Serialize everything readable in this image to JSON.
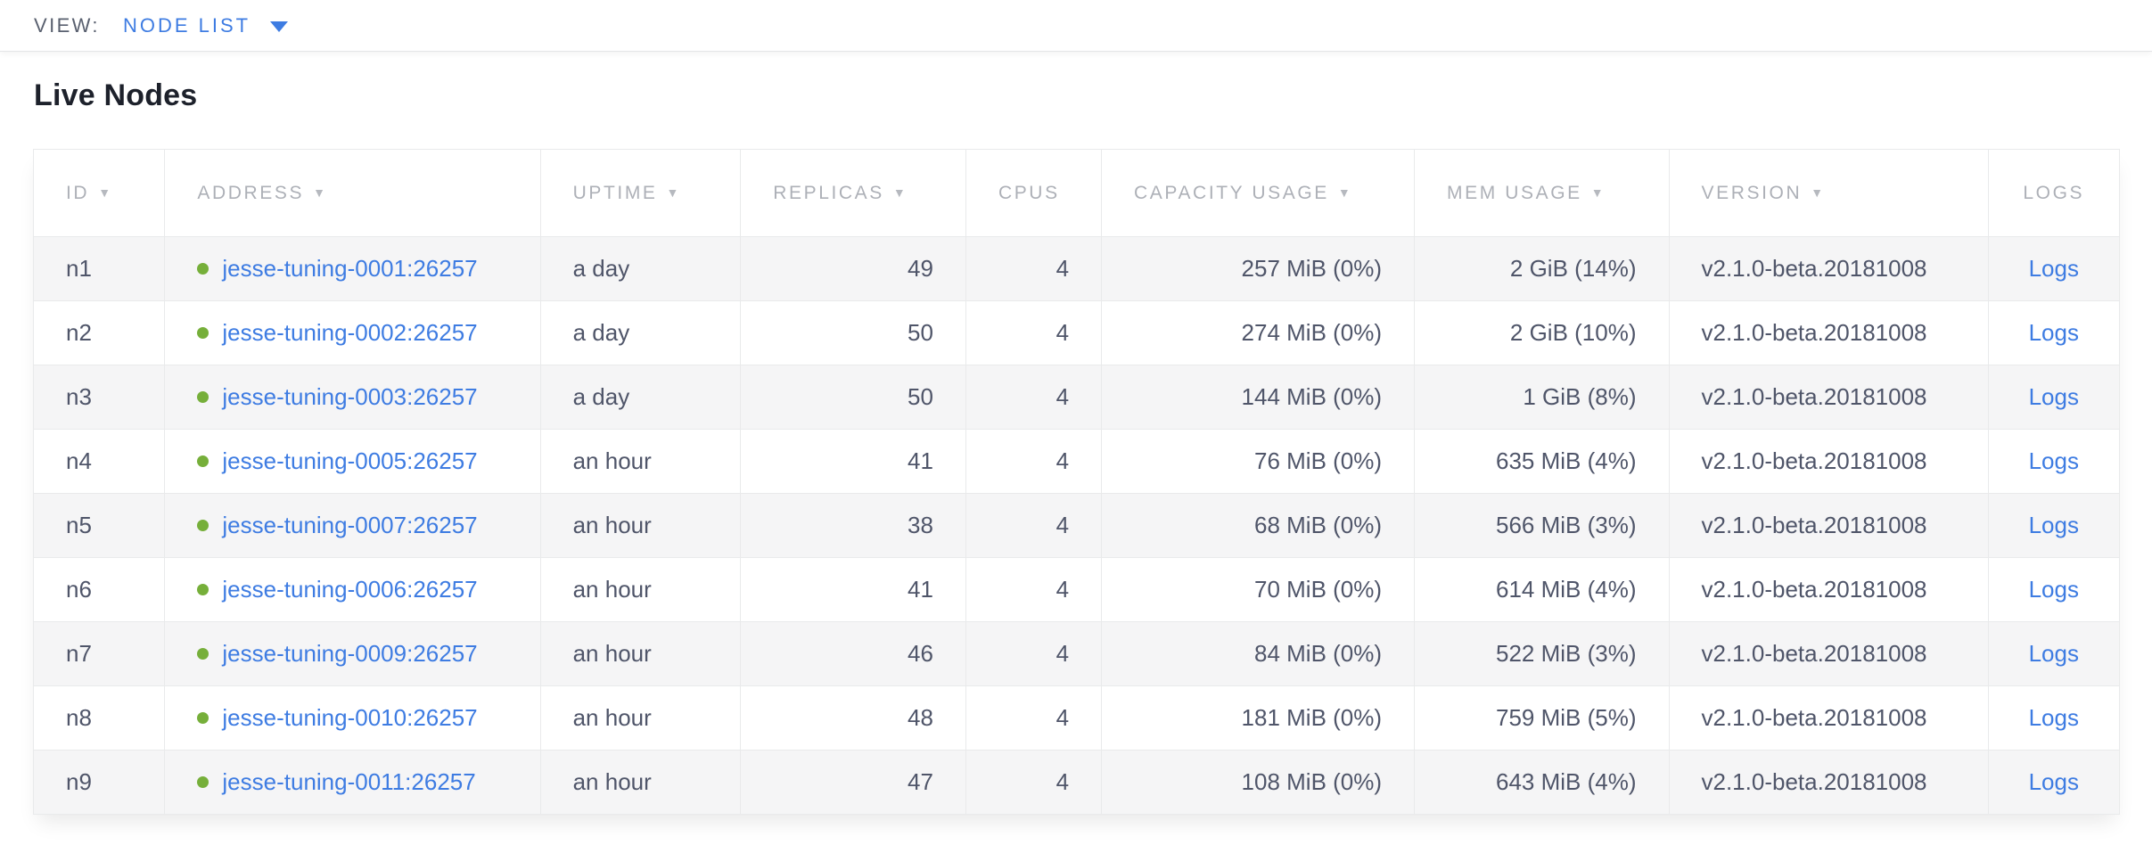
{
  "view_bar": {
    "label": "VIEW:",
    "selected": "NODE LIST"
  },
  "page": {
    "title": "Live Nodes"
  },
  "icons": {
    "sort_desc": "▼"
  },
  "colors": {
    "link": "#3e7ce2",
    "status_ok": "#76af3a",
    "header_text": "#adb0b7",
    "cell_text": "#4f5569",
    "zebra": "#f5f5f6",
    "border": "#e9eaeb"
  },
  "table": {
    "columns": [
      {
        "key": "id",
        "label": "ID",
        "sortable": true,
        "align": "left",
        "width": "6.3%"
      },
      {
        "key": "address",
        "label": "ADDRESS",
        "sortable": true,
        "align": "left",
        "width": "18.0%"
      },
      {
        "key": "uptime",
        "label": "UPTIME",
        "sortable": true,
        "align": "left",
        "width": "9.6%"
      },
      {
        "key": "replicas",
        "label": "REPLICAS",
        "sortable": true,
        "align": "right",
        "width": "10.8%"
      },
      {
        "key": "cpus",
        "label": "CPUS",
        "sortable": false,
        "align": "right",
        "width": "6.5%"
      },
      {
        "key": "capacity",
        "label": "CAPACITY USAGE",
        "sortable": true,
        "align": "right",
        "width": "15.0%"
      },
      {
        "key": "mem",
        "label": "MEM USAGE",
        "sortable": true,
        "align": "right",
        "width": "12.2%"
      },
      {
        "key": "version",
        "label": "VERSION",
        "sortable": true,
        "align": "left",
        "width": "15.3%"
      },
      {
        "key": "logs",
        "label": "LOGS",
        "sortable": false,
        "align": "center",
        "width": "6.3%"
      }
    ],
    "rows": [
      {
        "id": "n1",
        "address": "jesse-tuning-0001:26257",
        "uptime": "a day",
        "replicas": "49",
        "cpus": "4",
        "capacity": "257 MiB (0%)",
        "mem": "2 GiB (14%)",
        "version": "v2.1.0-beta.20181008",
        "logs": "Logs"
      },
      {
        "id": "n2",
        "address": "jesse-tuning-0002:26257",
        "uptime": "a day",
        "replicas": "50",
        "cpus": "4",
        "capacity": "274 MiB (0%)",
        "mem": "2 GiB (10%)",
        "version": "v2.1.0-beta.20181008",
        "logs": "Logs"
      },
      {
        "id": "n3",
        "address": "jesse-tuning-0003:26257",
        "uptime": "a day",
        "replicas": "50",
        "cpus": "4",
        "capacity": "144 MiB (0%)",
        "mem": "1 GiB (8%)",
        "version": "v2.1.0-beta.20181008",
        "logs": "Logs"
      },
      {
        "id": "n4",
        "address": "jesse-tuning-0005:26257",
        "uptime": "an hour",
        "replicas": "41",
        "cpus": "4",
        "capacity": "76 MiB (0%)",
        "mem": "635 MiB (4%)",
        "version": "v2.1.0-beta.20181008",
        "logs": "Logs"
      },
      {
        "id": "n5",
        "address": "jesse-tuning-0007:26257",
        "uptime": "an hour",
        "replicas": "38",
        "cpus": "4",
        "capacity": "68 MiB (0%)",
        "mem": "566 MiB (3%)",
        "version": "v2.1.0-beta.20181008",
        "logs": "Logs"
      },
      {
        "id": "n6",
        "address": "jesse-tuning-0006:26257",
        "uptime": "an hour",
        "replicas": "41",
        "cpus": "4",
        "capacity": "70 MiB (0%)",
        "mem": "614 MiB (4%)",
        "version": "v2.1.0-beta.20181008",
        "logs": "Logs"
      },
      {
        "id": "n7",
        "address": "jesse-tuning-0009:26257",
        "uptime": "an hour",
        "replicas": "46",
        "cpus": "4",
        "capacity": "84 MiB (0%)",
        "mem": "522 MiB (3%)",
        "version": "v2.1.0-beta.20181008",
        "logs": "Logs"
      },
      {
        "id": "n8",
        "address": "jesse-tuning-0010:26257",
        "uptime": "an hour",
        "replicas": "48",
        "cpus": "4",
        "capacity": "181 MiB (0%)",
        "mem": "759 MiB (5%)",
        "version": "v2.1.0-beta.20181008",
        "logs": "Logs"
      },
      {
        "id": "n9",
        "address": "jesse-tuning-0011:26257",
        "uptime": "an hour",
        "replicas": "47",
        "cpus": "4",
        "capacity": "108 MiB (0%)",
        "mem": "643 MiB (4%)",
        "version": "v2.1.0-beta.20181008",
        "logs": "Logs"
      }
    ]
  }
}
